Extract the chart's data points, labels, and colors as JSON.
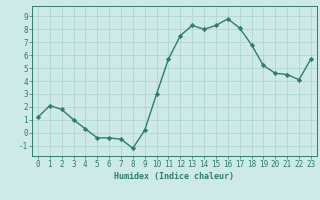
{
  "x": [
    0,
    1,
    2,
    3,
    4,
    5,
    6,
    7,
    8,
    9,
    10,
    11,
    12,
    13,
    14,
    15,
    16,
    17,
    18,
    19,
    20,
    21,
    22,
    23
  ],
  "y": [
    1.2,
    2.1,
    1.8,
    1.0,
    0.3,
    -0.4,
    -0.4,
    -0.5,
    -1.2,
    0.2,
    3.0,
    5.7,
    7.5,
    8.3,
    8.0,
    8.3,
    8.8,
    8.1,
    6.8,
    5.2,
    4.6,
    4.5,
    4.1,
    5.7
  ],
  "line_color": "#2e7d6e",
  "marker": "D",
  "marker_size": 2.2,
  "bg_color": "#cdeae6",
  "grid_color": "#aad4ce",
  "xlabel": "Humidex (Indice chaleur)",
  "xlim": [
    -0.5,
    23.5
  ],
  "ylim": [
    -1.8,
    9.8
  ],
  "yticks": [
    -1,
    0,
    1,
    2,
    3,
    4,
    5,
    6,
    7,
    8,
    9
  ],
  "xticks": [
    0,
    1,
    2,
    3,
    4,
    5,
    6,
    7,
    8,
    9,
    10,
    11,
    12,
    13,
    14,
    15,
    16,
    17,
    18,
    19,
    20,
    21,
    22,
    23
  ],
  "xlabel_fontsize": 6.0,
  "tick_fontsize": 5.5,
  "line_width": 1.0
}
